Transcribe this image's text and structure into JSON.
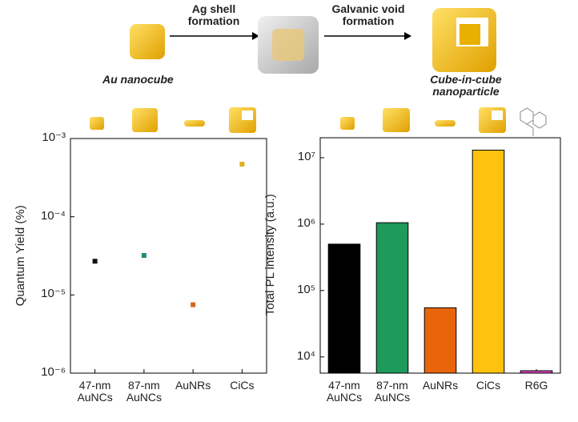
{
  "schematic": {
    "step1": "Ag shell\nformation",
    "step2": "Galvanic void\nformation",
    "start": "Au nanocube",
    "end": "Cube-in-cube\nnanoparticle"
  },
  "chart_data": [
    {
      "type": "scatter",
      "y_label": "Quantum Yield (%)",
      "log_y": true,
      "categories": [
        "47-nm\nAuNCs",
        "87-nm\nAuNCs",
        "AuNRs",
        "CiCs"
      ],
      "values": [
        2.7e-05,
        3.2e-05,
        7.5e-06,
        0.00047
      ],
      "colors": [
        "#111111",
        "#1e8a7a",
        "#d2691e",
        "#e0b020"
      ],
      "ylim": [
        1e-06,
        0.001
      ],
      "yticks": [
        {
          "value": 1e-06,
          "label": "10⁻⁶"
        },
        {
          "value": 1e-05,
          "label": "10⁻⁵"
        },
        {
          "value": 0.0001,
          "label": "10⁻⁴"
        },
        {
          "value": 0.001,
          "label": "10⁻³"
        }
      ]
    },
    {
      "type": "bar",
      "y_label": "Total PL intensity (a.u.)",
      "log_y": true,
      "categories": [
        "47-nm\nAuNCs",
        "87-nm\nAuNCs",
        "AuNRs",
        "CiCs",
        "R6G"
      ],
      "values": [
        500000,
        1050000,
        55000,
        13000000,
        6200
      ],
      "colors": [
        "#000000",
        "#1e9a5a",
        "#e8650c",
        "#ffc20e",
        "#e040c0"
      ],
      "ylim": [
        5700,
        20000000
      ],
      "yticks": [
        {
          "value": 10000,
          "label": "10⁴"
        },
        {
          "value": 100000,
          "label": "10⁵"
        },
        {
          "value": 1000000,
          "label": "10⁶"
        },
        {
          "value": 10000000,
          "label": "10⁷"
        }
      ]
    }
  ]
}
